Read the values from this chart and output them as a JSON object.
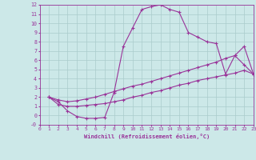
{
  "bg_color": "#cce8e8",
  "line_color": "#993399",
  "grid_color": "#aacccc",
  "xlim": [
    0,
    23
  ],
  "ylim": [
    -1,
    12
  ],
  "xlabel": "Windchill (Refroidissement éolien,°C)",
  "curve1_x": [
    1,
    2,
    3,
    4,
    5,
    6,
    7,
    8,
    9,
    10,
    11,
    12,
    13,
    14,
    15,
    16,
    17,
    18,
    19,
    20,
    21,
    22,
    23
  ],
  "curve1_y": [
    2.0,
    1.5,
    0.5,
    -0.1,
    -0.3,
    -0.3,
    -0.2,
    2.5,
    7.5,
    9.5,
    11.5,
    11.8,
    12.0,
    11.5,
    11.2,
    9.0,
    8.5,
    8.0,
    7.8,
    4.5,
    6.5,
    5.5,
    4.5
  ],
  "curve2_x": [
    1,
    2,
    3,
    4,
    5,
    6,
    7,
    8,
    9,
    10,
    11,
    12,
    13,
    14,
    15,
    16,
    17,
    18,
    19,
    20,
    21,
    22,
    23
  ],
  "curve2_y": [
    2.0,
    1.7,
    1.5,
    1.6,
    1.8,
    2.0,
    2.3,
    2.6,
    2.9,
    3.2,
    3.4,
    3.7,
    4.0,
    4.3,
    4.6,
    4.9,
    5.2,
    5.5,
    5.8,
    6.2,
    6.5,
    7.5,
    4.5
  ],
  "curve3_x": [
    1,
    2,
    3,
    4,
    5,
    6,
    7,
    8,
    9,
    10,
    11,
    12,
    13,
    14,
    15,
    16,
    17,
    18,
    19,
    20,
    21,
    22,
    23
  ],
  "curve3_y": [
    2.0,
    1.2,
    1.0,
    1.0,
    1.1,
    1.2,
    1.3,
    1.5,
    1.7,
    2.0,
    2.2,
    2.5,
    2.7,
    3.0,
    3.3,
    3.5,
    3.8,
    4.0,
    4.2,
    4.4,
    4.6,
    4.9,
    4.5
  ]
}
